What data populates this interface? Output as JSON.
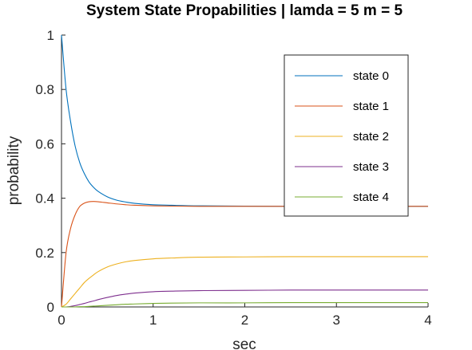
{
  "chart_data": {
    "type": "line",
    "title": "System State Propabilities | lamda = 5 m = 5",
    "xlabel": "sec",
    "ylabel": "probability",
    "xlim": [
      0,
      4
    ],
    "ylim": [
      0,
      1
    ],
    "x_ticks": [
      "0",
      "1",
      "2",
      "3",
      "4"
    ],
    "y_ticks": [
      "0",
      "0.2",
      "0.4",
      "0.6",
      "0.8",
      "1"
    ],
    "grid": false,
    "legend_position": "top-right",
    "x": [
      0,
      0.05,
      0.1,
      0.15,
      0.2,
      0.25,
      0.3,
      0.35,
      0.4,
      0.5,
      0.6,
      0.7,
      0.8,
      1.0,
      1.2,
      1.5,
      2.0,
      2.5,
      3.0,
      3.5,
      4.0
    ],
    "series": [
      {
        "name": "state 0",
        "color": "#0072BD",
        "values": [
          1.0,
          0.8,
          0.68,
          0.59,
          0.53,
          0.49,
          0.46,
          0.44,
          0.425,
          0.405,
          0.393,
          0.386,
          0.381,
          0.376,
          0.374,
          0.372,
          0.371,
          0.37,
          0.37,
          0.37,
          0.37
        ]
      },
      {
        "name": "state 1",
        "color": "#D95319",
        "values": [
          0.0,
          0.2,
          0.29,
          0.34,
          0.37,
          0.382,
          0.387,
          0.388,
          0.387,
          0.383,
          0.379,
          0.376,
          0.374,
          0.372,
          0.371,
          0.37,
          0.37,
          0.37,
          0.37,
          0.37,
          0.37
        ]
      },
      {
        "name": "state 2",
        "color": "#EDB120",
        "values": [
          0.0,
          0.01,
          0.03,
          0.05,
          0.07,
          0.09,
          0.105,
          0.118,
          0.13,
          0.147,
          0.158,
          0.166,
          0.171,
          0.177,
          0.18,
          0.183,
          0.184,
          0.185,
          0.185,
          0.185,
          0.185
        ]
      },
      {
        "name": "state 3",
        "color": "#7E2F8E",
        "values": [
          0.0,
          0.0,
          0.002,
          0.005,
          0.009,
          0.013,
          0.018,
          0.022,
          0.027,
          0.035,
          0.042,
          0.047,
          0.051,
          0.056,
          0.058,
          0.06,
          0.061,
          0.062,
          0.062,
          0.062,
          0.062
        ]
      },
      {
        "name": "state 4",
        "color": "#77AC30",
        "values": [
          0.0,
          0.0,
          0.0,
          0.0,
          0.001,
          0.001,
          0.002,
          0.003,
          0.004,
          0.006,
          0.008,
          0.01,
          0.011,
          0.013,
          0.014,
          0.015,
          0.015,
          0.016,
          0.016,
          0.016,
          0.016
        ]
      }
    ]
  }
}
